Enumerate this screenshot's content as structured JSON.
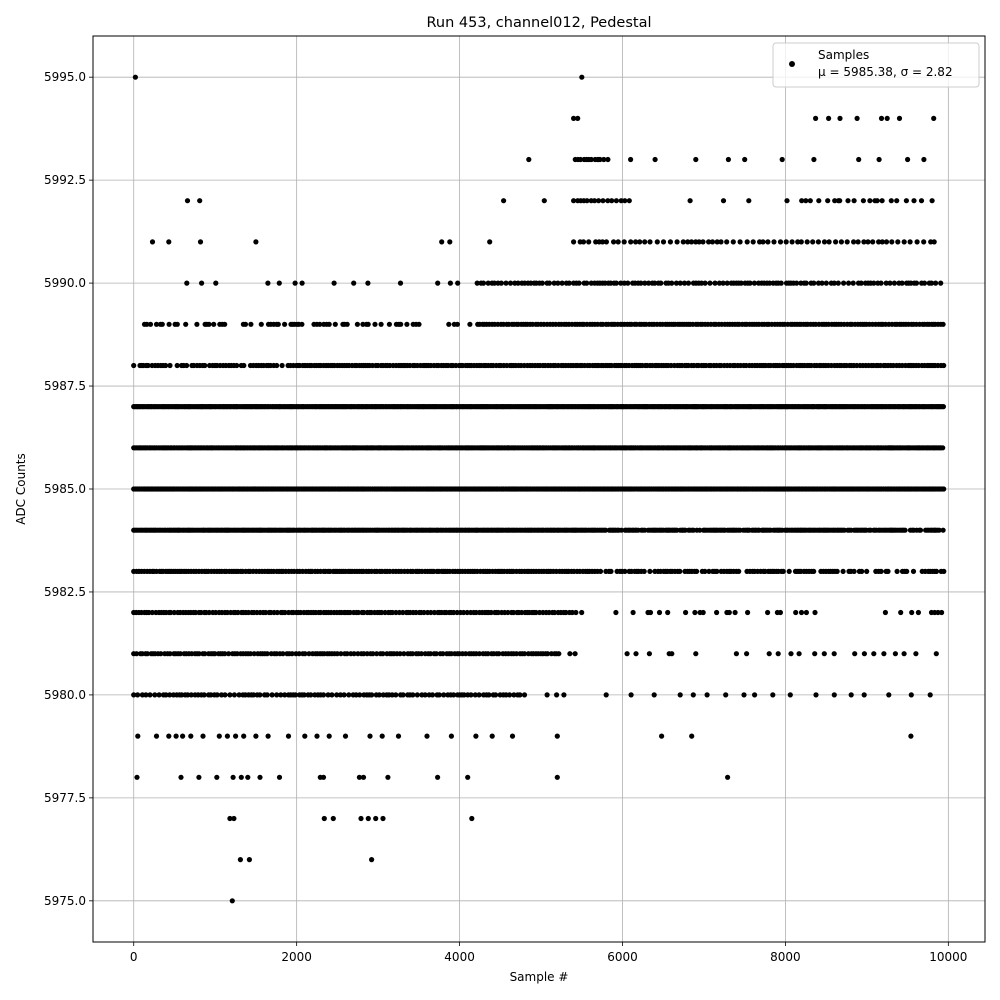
{
  "chart_data": {
    "type": "scatter",
    "title": "Run 453, channel012, Pedestal",
    "xlabel": "Sample #",
    "ylabel": "ADC Counts",
    "xlim": [
      -500,
      10450
    ],
    "ylim": [
      5974,
      5996
    ],
    "xticks": [
      0,
      2000,
      4000,
      6000,
      8000,
      10000
    ],
    "xtick_labels": [
      "0",
      "2000",
      "4000",
      "6000",
      "8000",
      "10000"
    ],
    "yticks": [
      5975.0,
      5977.5,
      5980.0,
      5982.5,
      5985.0,
      5987.5,
      5990.0,
      5992.5,
      5995.0
    ],
    "ytick_labels": [
      "5975.0",
      "5977.5",
      "5980.0",
      "5982.5",
      "5985.0",
      "5987.5",
      "5990.0",
      "5992.5",
      "5995.0"
    ],
    "grid": true,
    "legend_position": "top-right",
    "marker_color": "#000000",
    "series": [
      {
        "name": "Samples",
        "stats_text": "μ = 5985.38, σ = 2.82",
        "x_range": [
          0,
          9950
        ],
        "mean": 5985.38,
        "std": 2.82,
        "points": [
          [
            1210,
            5975
          ],
          [
            1310,
            5976
          ],
          [
            1420,
            5976
          ],
          [
            2920,
            5976
          ],
          [
            1180,
            5977
          ],
          [
            1230,
            5977
          ],
          [
            2340,
            5977
          ],
          [
            2450,
            5977
          ],
          [
            2790,
            5977
          ],
          [
            2880,
            5977
          ],
          [
            2970,
            5977
          ],
          [
            3060,
            5977
          ],
          [
            4150,
            5977
          ],
          [
            40,
            5978
          ],
          [
            580,
            5978
          ],
          [
            800,
            5978
          ],
          [
            1020,
            5978
          ],
          [
            1220,
            5978
          ],
          [
            1320,
            5978
          ],
          [
            1400,
            5978
          ],
          [
            1550,
            5978
          ],
          [
            1790,
            5978
          ],
          [
            2290,
            5978
          ],
          [
            2330,
            5978
          ],
          [
            2770,
            5978
          ],
          [
            2820,
            5978
          ],
          [
            3120,
            5978
          ],
          [
            3730,
            5978
          ],
          [
            4100,
            5978
          ],
          [
            5200,
            5978
          ],
          [
            7290,
            5978
          ],
          [
            50,
            5979
          ],
          [
            280,
            5979
          ],
          [
            430,
            5979
          ],
          [
            520,
            5979
          ],
          [
            600,
            5979
          ],
          [
            700,
            5979
          ],
          [
            850,
            5979
          ],
          [
            1050,
            5979
          ],
          [
            1150,
            5979
          ],
          [
            1250,
            5979
          ],
          [
            1350,
            5979
          ],
          [
            1500,
            5979
          ],
          [
            1650,
            5979
          ],
          [
            1900,
            5979
          ],
          [
            2100,
            5979
          ],
          [
            2250,
            5979
          ],
          [
            2400,
            5979
          ],
          [
            2600,
            5979
          ],
          [
            2900,
            5979
          ],
          [
            3050,
            5979
          ],
          [
            3250,
            5979
          ],
          [
            3600,
            5979
          ],
          [
            3900,
            5979
          ],
          [
            4200,
            5979
          ],
          [
            4400,
            5979
          ],
          [
            4650,
            5979
          ],
          [
            5200,
            5979
          ],
          [
            6480,
            5979
          ],
          [
            6850,
            5979
          ],
          [
            9540,
            5979
          ],
          [
            20,
            5995.0
          ],
          [
            5500,
            5995
          ],
          [
            5450,
            5994
          ],
          [
            5400,
            5994
          ],
          [
            8370,
            5994
          ],
          [
            8530,
            5994
          ],
          [
            8670,
            5994
          ],
          [
            8880,
            5994
          ],
          [
            9180,
            5994
          ],
          [
            9250,
            5994
          ],
          [
            9400,
            5994
          ],
          [
            9820,
            5994
          ],
          [
            660,
            5992
          ],
          [
            810,
            5992
          ],
          [
            4540,
            5992
          ],
          [
            5040,
            5992
          ],
          [
            6830,
            5992
          ],
          [
            7240,
            5992
          ],
          [
            7550,
            5992
          ],
          [
            8020,
            5992
          ],
          [
            8250,
            5992
          ],
          [
            8650,
            5992
          ],
          [
            9100,
            5992
          ],
          [
            9800,
            5992
          ],
          [
            4850,
            5993
          ],
          [
            5700,
            5993
          ],
          [
            6100,
            5993
          ],
          [
            6400,
            5993
          ],
          [
            6900,
            5993
          ],
          [
            7300,
            5993
          ],
          [
            7500,
            5993
          ],
          [
            7960,
            5993
          ],
          [
            8350,
            5993
          ],
          [
            8900,
            5993
          ],
          [
            9150,
            5993
          ],
          [
            9500,
            5993
          ],
          [
            9700,
            5993
          ],
          [
            230,
            5991
          ],
          [
            430,
            5991
          ],
          [
            820,
            5991
          ],
          [
            1500,
            5991
          ],
          [
            3780,
            5991
          ],
          [
            3880,
            5991
          ],
          [
            4370,
            5991
          ]
        ]
      }
    ]
  }
}
